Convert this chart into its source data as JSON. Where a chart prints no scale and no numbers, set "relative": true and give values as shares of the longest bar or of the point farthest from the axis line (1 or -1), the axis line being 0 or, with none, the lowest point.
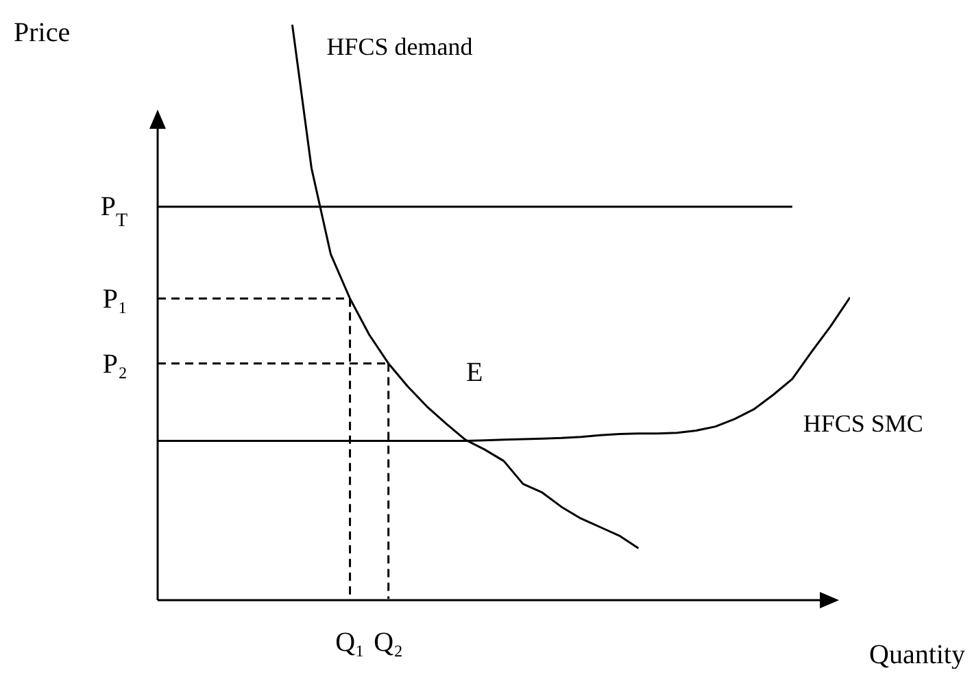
{
  "chart_data": {
    "type": "line",
    "relative": true,
    "xlabel": "Quantity",
    "ylabel": "Price",
    "marker": "none",
    "categories": [
      null,
      null,
      null,
      null,
      null,
      null,
      null,
      null,
      null,
      null,
      "Q₁",
      null,
      "Q₂",
      null,
      null,
      null,
      null,
      null,
      null,
      null,
      null,
      null,
      null,
      null,
      null,
      null,
      null,
      null,
      null,
      null,
      null,
      null,
      null,
      null,
      null,
      null,
      null
    ],
    "annotations": [
      "E"
    ],
    "series": [
      {
        "name": "HFCS demand",
        "color": "#000000",
        "line_style": "solid",
        "values": [
          null,
          null,
          null,
          null,
          null,
          null,
          null,
          1.0,
          0.75,
          0.6,
          0.523,
          0.46,
          0.41,
          0.37,
          0.335,
          0.305,
          0.277,
          0.26,
          0.24,
          0.2,
          0.185,
          0.16,
          0.14,
          0.125,
          0.11,
          0.088,
          null,
          null,
          null,
          null,
          null,
          null,
          null,
          null,
          null,
          null,
          null
        ]
      },
      {
        "name": "HFCS SMC",
        "color": "#000000",
        "line_style": "solid",
        "values": [
          0.275,
          0.275,
          0.275,
          0.275,
          0.275,
          0.275,
          0.275,
          0.275,
          0.275,
          0.275,
          0.275,
          0.275,
          0.275,
          0.275,
          0.275,
          0.275,
          0.275,
          0.276,
          0.277,
          0.278,
          0.279,
          0.28,
          0.282,
          0.285,
          0.287,
          0.288,
          0.288,
          0.289,
          0.293,
          0.3,
          0.313,
          0.33,
          0.355,
          0.383,
          0.43,
          0.475,
          0.525
        ]
      },
      {
        "name": "P$_{T}$",
        "color": "#000000",
        "line_style": "solid",
        "values": [
          0.683,
          0.683,
          0.683,
          0.683,
          0.683,
          0.683,
          0.683,
          0.683,
          0.683,
          0.683,
          0.683,
          0.683,
          0.683,
          0.683,
          0.683,
          0.683,
          0.683,
          0.683,
          0.683,
          0.683,
          0.683,
          0.683,
          0.683,
          0.683,
          0.683,
          0.683,
          0.683,
          0.683,
          0.683,
          0.683,
          0.683,
          0.683,
          0.683,
          0.683,
          null,
          null,
          null
        ]
      },
      {
        "name": "P₁",
        "color": "#000000",
        "line_style": "dashed",
        "values": [
          0.523,
          0.523,
          0.523,
          0.523,
          0.523,
          0.523,
          0.523,
          0.523,
          0.523,
          0.523,
          0.523,
          null,
          null,
          null,
          null,
          null,
          null,
          null,
          null,
          null,
          null,
          null,
          null,
          null,
          null,
          null,
          null,
          null,
          null,
          null,
          null,
          null,
          null,
          null,
          null,
          null,
          null
        ]
      },
      {
        "color": "#000000",
        "line_style": "dashed",
        "x": [
          "Q₁",
          "Q₁"
        ],
        "values": [
          0.523,
          0
        ]
      },
      {
        "name": "P₂",
        "color": "#000000",
        "line_style": "dashed",
        "values": [
          0.41,
          0.41,
          0.41,
          0.41,
          0.41,
          0.41,
          0.41,
          0.41,
          0.41,
          0.41,
          0.41,
          0.41,
          0.41,
          null,
          null,
          null,
          null,
          null,
          null,
          null,
          null,
          null,
          null,
          null,
          null,
          null,
          null,
          null,
          null,
          null,
          null,
          null,
          null,
          null,
          null,
          null,
          null
        ]
      },
      {
        "color": "#000000",
        "line_style": "dashed",
        "x": [
          "Q₂",
          "Q₂"
        ],
        "values": [
          0.41,
          0
        ]
      }
    ]
  }
}
